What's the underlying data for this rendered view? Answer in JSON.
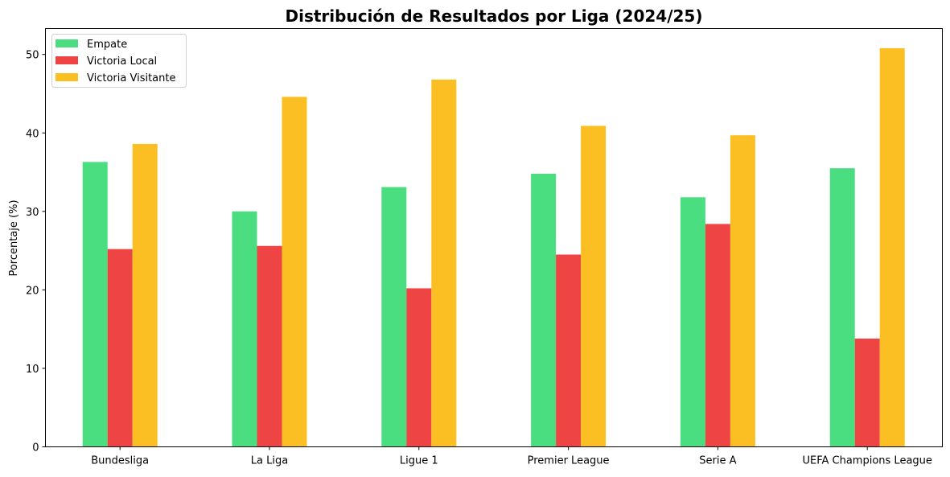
{
  "chart_data": {
    "type": "bar",
    "title": "Distribución de Resultados por Liga (2024/25)",
    "xlabel": "",
    "ylabel": "Porcentaje (%)",
    "ylim": [
      0,
      53.3
    ],
    "yticks": [
      0,
      10,
      20,
      30,
      40,
      50
    ],
    "grid": false,
    "legend_position": "top-left",
    "categories": [
      "Bundesliga",
      "La Liga",
      "Ligue 1",
      "Premier League",
      "Serie A",
      "UEFA Champions League"
    ],
    "series": [
      {
        "name": "Empate",
        "color": "#4ade80",
        "values": [
          36.3,
          30.0,
          33.1,
          34.8,
          31.8,
          35.5
        ]
      },
      {
        "name": "Victoria Local",
        "color": "#ef4444",
        "values": [
          25.2,
          25.6,
          20.2,
          24.5,
          28.4,
          13.8
        ]
      },
      {
        "name": "Victoria Visitante",
        "color": "#fbbf24",
        "values": [
          38.6,
          44.6,
          46.8,
          40.9,
          39.7,
          50.8
        ]
      }
    ]
  }
}
